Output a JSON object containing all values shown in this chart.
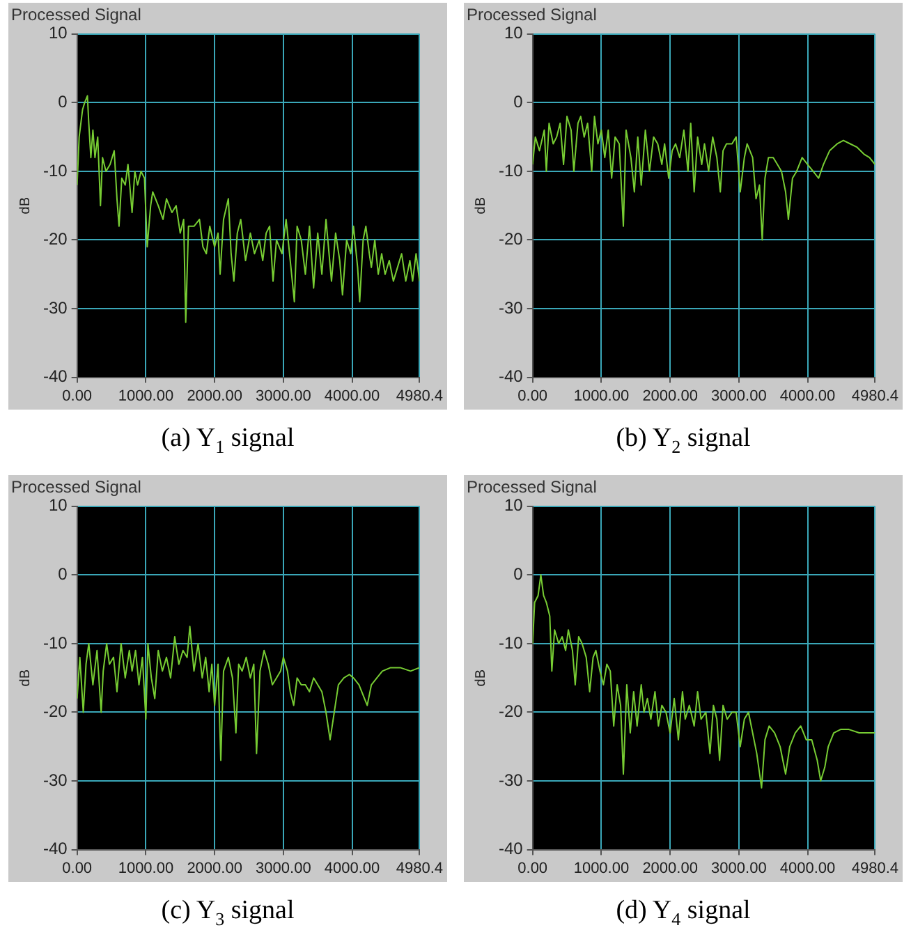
{
  "chart_data": [
    {
      "type": "line",
      "title": "Processed Signal",
      "ylabel": "dB",
      "annotations": [
        "(a) Y$_{1}$ signal"
      ],
      "color": "#77cc33",
      "marker": "none",
      "grid": true,
      "legend": false,
      "xlim": [
        0,
        4980.4
      ],
      "ylim": [
        -40,
        10
      ],
      "yticks": [
        -40,
        -30,
        -20,
        -10,
        0,
        10
      ],
      "xticks": [
        {
          "value": 0,
          "label": "0.00"
        },
        {
          "value": 1000,
          "label": "1000.00"
        },
        {
          "value": 2000,
          "label": "2000.00"
        },
        {
          "value": 3000,
          "label": "3000.00"
        },
        {
          "value": 4000,
          "label": "4000.00"
        },
        {
          "value": 4980.4,
          "label": "4980.4"
        }
      ],
      "x": [
        0,
        30,
        80,
        110,
        150,
        170,
        200,
        230,
        260,
        300,
        340,
        370,
        420,
        480,
        540,
        580,
        610,
        650,
        700,
        740,
        800,
        840,
        880,
        930,
        980,
        1020,
        1070,
        1100,
        1180,
        1250,
        1300,
        1380,
        1440,
        1500,
        1550,
        1580,
        1620,
        1700,
        1780,
        1830,
        1880,
        1930,
        2000,
        2050,
        2080,
        2130,
        2200,
        2240,
        2280,
        2330,
        2380,
        2450,
        2520,
        2580,
        2650,
        2700,
        2750,
        2800,
        2850,
        2900,
        2980,
        3040,
        3100,
        3160,
        3200,
        3260,
        3320,
        3380,
        3440,
        3500,
        3560,
        3620,
        3700,
        3760,
        3820,
        3860,
        3920,
        3980,
        4020,
        4080,
        4110,
        4160,
        4200,
        4250,
        4280,
        4330,
        4380,
        4430,
        4480,
        4540,
        4600,
        4660,
        4720,
        4780,
        4840,
        4880,
        4930,
        4980.4
      ],
      "values": [
        -12,
        -5,
        -1,
        0,
        1,
        -3,
        -8,
        -4,
        -8,
        -5,
        -15,
        -8,
        -10,
        -9,
        -7,
        -14,
        -18,
        -11,
        -12,
        -9,
        -16,
        -10,
        -12,
        -10,
        -11,
        -21,
        -15,
        -13,
        -15,
        -17,
        -14,
        -16,
        -15,
        -19,
        -17,
        -32,
        -18,
        -18,
        -17,
        -21,
        -22,
        -18,
        -21,
        -19,
        -25,
        -17,
        -14,
        -22,
        -26,
        -19,
        -17,
        -23,
        -19,
        -22,
        -20,
        -23,
        -19,
        -18,
        -26,
        -20,
        -22,
        -17,
        -23,
        -29,
        -18,
        -20,
        -25,
        -18,
        -27,
        -19,
        -25,
        -17,
        -26,
        -19,
        -23,
        -28,
        -20,
        -22,
        -18,
        -24,
        -29,
        -20,
        -18,
        -22,
        -24,
        -20,
        -25,
        -22,
        -25,
        -23,
        -26,
        -24,
        -22,
        -26,
        -23,
        -26,
        -22,
        -26
      ]
    },
    {
      "type": "line",
      "title": "Processed Signal",
      "ylabel": "dB",
      "annotations": [
        "(b) Y$_{2}$ signal"
      ],
      "color": "#77cc33",
      "marker": "none",
      "grid": true,
      "legend": false,
      "xlim": [
        0,
        4980.4
      ],
      "ylim": [
        -40,
        10
      ],
      "yticks": [
        -40,
        -30,
        -20,
        -10,
        0,
        10
      ],
      "xticks": [
        {
          "value": 0,
          "label": "0.00"
        },
        {
          "value": 1000,
          "label": "1000.00"
        },
        {
          "value": 2000,
          "label": "2000.00"
        },
        {
          "value": 3000,
          "label": "3000.00"
        },
        {
          "value": 4000,
          "label": "4000.00"
        },
        {
          "value": 4980.4,
          "label": "4980.4"
        }
      ],
      "x": [
        0,
        40,
        100,
        170,
        200,
        240,
        300,
        350,
        400,
        450,
        500,
        560,
        600,
        660,
        700,
        750,
        800,
        860,
        900,
        950,
        1000,
        1050,
        1100,
        1150,
        1200,
        1260,
        1320,
        1360,
        1430,
        1480,
        1530,
        1580,
        1640,
        1700,
        1760,
        1820,
        1880,
        1920,
        1980,
        2030,
        2080,
        2140,
        2200,
        2260,
        2300,
        2350,
        2400,
        2460,
        2500,
        2560,
        2620,
        2680,
        2730,
        2770,
        2820,
        2900,
        2960,
        3020,
        3080,
        3120,
        3200,
        3250,
        3300,
        3340,
        3380,
        3430,
        3500,
        3560,
        3620,
        3680,
        3720,
        3780,
        3840,
        3920,
        4000,
        4080,
        4160,
        4230,
        4320,
        4430,
        4520,
        4620,
        4720,
        4820,
        4900,
        4980.4
      ],
      "values": [
        -9,
        -5,
        -7,
        -4,
        -10,
        -3,
        -6,
        -5,
        -3,
        -9,
        -2,
        -4,
        -10,
        -3,
        -2,
        -5,
        -3,
        -10,
        -2,
        -6,
        -4,
        -8,
        -4,
        -11,
        -5,
        -6,
        -18,
        -4,
        -8,
        -13,
        -5,
        -12,
        -4,
        -10,
        -5,
        -6,
        -9,
        -6,
        -11,
        -7,
        -6,
        -8,
        -4,
        -10,
        -3,
        -13,
        -5,
        -9,
        -6,
        -10,
        -5,
        -8,
        -13,
        -7,
        -6,
        -6,
        -5,
        -13,
        -8,
        -6,
        -8,
        -14,
        -12,
        -20,
        -11,
        -8,
        -8,
        -9,
        -10,
        -13,
        -17,
        -11,
        -10,
        -8,
        -9,
        -10,
        -11,
        -9,
        -7,
        -6,
        -5.5,
        -6,
        -6.5,
        -7.5,
        -8,
        -9
      ]
    },
    {
      "type": "line",
      "title": "Processed Signal",
      "ylabel": "dB",
      "annotations": [
        "(c) Y$_{3}$ signal"
      ],
      "color": "#77cc33",
      "marker": "none",
      "grid": true,
      "legend": false,
      "xlim": [
        0,
        4980.4
      ],
      "ylim": [
        -40,
        10
      ],
      "yticks": [
        -40,
        -30,
        -20,
        -10,
        0,
        10
      ],
      "xticks": [
        {
          "value": 0,
          "label": "0.00"
        },
        {
          "value": 1000,
          "label": "1000.00"
        },
        {
          "value": 2000,
          "label": "2000.00"
        },
        {
          "value": 3000,
          "label": "3000.00"
        },
        {
          "value": 4000,
          "label": "4000.00"
        },
        {
          "value": 4980.4,
          "label": "4980.4"
        }
      ],
      "x": [
        0,
        40,
        90,
        130,
        170,
        230,
        290,
        350,
        380,
        430,
        470,
        530,
        580,
        640,
        700,
        760,
        800,
        850,
        900,
        950,
        1000,
        1030,
        1080,
        1130,
        1180,
        1240,
        1300,
        1360,
        1420,
        1480,
        1540,
        1600,
        1640,
        1700,
        1760,
        1820,
        1870,
        1920,
        1960,
        2000,
        2050,
        2090,
        2130,
        2200,
        2260,
        2310,
        2350,
        2400,
        2460,
        2520,
        2570,
        2610,
        2660,
        2720,
        2780,
        2840,
        2900,
        2960,
        3000,
        3060,
        3100,
        3150,
        3200,
        3260,
        3320,
        3380,
        3440,
        3500,
        3560,
        3620,
        3680,
        3740,
        3800,
        3880,
        3960,
        4020,
        4100,
        4180,
        4220,
        4280,
        4360,
        4440,
        4560,
        4700,
        4850,
        4980.4
      ],
      "values": [
        -18,
        -12,
        -20,
        -13,
        -10,
        -16,
        -11,
        -20,
        -14,
        -10,
        -13,
        -12,
        -17,
        -10,
        -15,
        -11,
        -14,
        -11,
        -16,
        -12,
        -21,
        -10,
        -15,
        -18,
        -11,
        -14,
        -12,
        -15,
        -9,
        -13,
        -11,
        -12,
        -7.5,
        -14,
        -10,
        -15,
        -12,
        -17,
        -13,
        -19,
        -13,
        -27,
        -14,
        -12,
        -15,
        -23,
        -13,
        -14,
        -12,
        -15,
        -13,
        -26,
        -14,
        -11,
        -13,
        -16,
        -15,
        -14,
        -12,
        -14,
        -17,
        -19,
        -15,
        -16,
        -16,
        -17,
        -15,
        -16,
        -17,
        -20,
        -24,
        -20,
        -16,
        -15,
        -14.5,
        -15,
        -16,
        -18,
        -19,
        -16,
        -15,
        -14,
        -13.5,
        -13.5,
        -14,
        -13.5
      ]
    },
    {
      "type": "line",
      "title": "Processed Signal",
      "ylabel": "dB",
      "annotations": [
        "(d) Y$_{4}$ signal"
      ],
      "color": "#77cc33",
      "marker": "none",
      "grid": true,
      "legend": false,
      "xlim": [
        0,
        4980.4
      ],
      "ylim": [
        -40,
        10
      ],
      "yticks": [
        -40,
        -30,
        -20,
        -10,
        0,
        10
      ],
      "xticks": [
        {
          "value": 0,
          "label": "0.00"
        },
        {
          "value": 1000,
          "label": "1000.00"
        },
        {
          "value": 2000,
          "label": "2000.00"
        },
        {
          "value": 3000,
          "label": "3000.00"
        },
        {
          "value": 4000,
          "label": "4000.00"
        },
        {
          "value": 4980.4,
          "label": "4980.4"
        }
      ],
      "x": [
        0,
        30,
        80,
        120,
        160,
        200,
        250,
        280,
        320,
        380,
        430,
        480,
        520,
        580,
        620,
        670,
        720,
        780,
        830,
        880,
        920,
        980,
        1030,
        1080,
        1130,
        1180,
        1230,
        1280,
        1320,
        1370,
        1420,
        1470,
        1520,
        1580,
        1620,
        1670,
        1720,
        1780,
        1830,
        1880,
        1940,
        2000,
        2060,
        2120,
        2180,
        2220,
        2280,
        2350,
        2400,
        2450,
        2520,
        2580,
        2630,
        2680,
        2720,
        2770,
        2830,
        2900,
        2960,
        3020,
        3080,
        3140,
        3200,
        3260,
        3330,
        3380,
        3440,
        3520,
        3600,
        3680,
        3740,
        3820,
        3900,
        3980,
        4060,
        4140,
        4190,
        4250,
        4300,
        4380,
        4480,
        4600,
        4750,
        4980.4
      ],
      "values": [
        -10,
        -4,
        -3,
        0,
        -3,
        -4,
        -6,
        -14,
        -8,
        -10,
        -9,
        -11,
        -8,
        -11,
        -16,
        -9,
        -10,
        -12,
        -17,
        -12,
        -11,
        -14,
        -16,
        -13,
        -14,
        -22,
        -16,
        -19,
        -29,
        -16,
        -23,
        -17,
        -22,
        -16,
        -20,
        -18,
        -21,
        -17,
        -22,
        -19,
        -20,
        -23,
        -18,
        -24,
        -17,
        -21,
        -19,
        -22,
        -17,
        -21,
        -20,
        -26,
        -19,
        -21,
        -27,
        -19,
        -21,
        -20,
        -20,
        -25,
        -21,
        -20,
        -23,
        -26,
        -31,
        -24,
        -22,
        -23,
        -25,
        -29,
        -25,
        -23,
        -22,
        -24,
        -24,
        -27,
        -30,
        -28,
        -25,
        -23,
        -22.5,
        -22.5,
        -23,
        -23
      ]
    }
  ]
}
